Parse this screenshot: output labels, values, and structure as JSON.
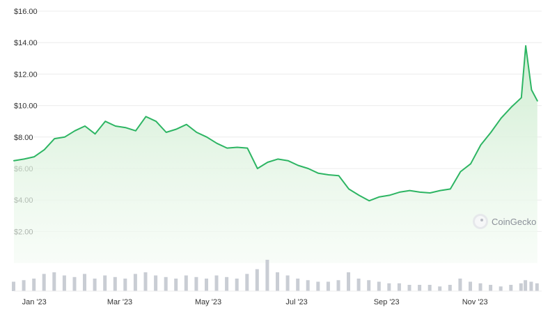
{
  "chart_data": {
    "type": "area",
    "title": "",
    "xlabel": "",
    "ylabel": "",
    "y_tick_labels": [
      "$2.00",
      "$4.00",
      "$6.00",
      "$8.00",
      "$10.00",
      "$12.00",
      "$14.00",
      "$16.00"
    ],
    "y_ticks": [
      2,
      4,
      6,
      8,
      10,
      12,
      14,
      16
    ],
    "ylim": [
      0,
      16
    ],
    "x_tick_labels": [
      "Jan '23",
      "Mar '23",
      "May '23",
      "Jul '23",
      "Sep '23",
      "Nov '23"
    ],
    "x_ticks": [
      "2023-01-15",
      "2023-03-15",
      "2023-05-15",
      "2023-07-15",
      "2023-09-15",
      "2023-11-15"
    ],
    "xlim": [
      "2023-01-01",
      "2023-12-31"
    ],
    "grid": true,
    "series": [
      {
        "values": [
          [
            "2023-01-01",
            6.5
          ],
          [
            "2023-01-08",
            6.6
          ],
          [
            "2023-01-15",
            6.75
          ],
          [
            "2023-01-22",
            7.2
          ],
          [
            "2023-01-29",
            7.9
          ],
          [
            "2023-02-05",
            8.0
          ],
          [
            "2023-02-12",
            8.4
          ],
          [
            "2023-02-19",
            8.7
          ],
          [
            "2023-02-26",
            8.2
          ],
          [
            "2023-03-05",
            9.0
          ],
          [
            "2023-03-12",
            8.7
          ],
          [
            "2023-03-19",
            8.6
          ],
          [
            "2023-03-26",
            8.4
          ],
          [
            "2023-04-02",
            9.3
          ],
          [
            "2023-04-09",
            9.0
          ],
          [
            "2023-04-16",
            8.3
          ],
          [
            "2023-04-23",
            8.5
          ],
          [
            "2023-04-30",
            8.8
          ],
          [
            "2023-05-07",
            8.3
          ],
          [
            "2023-05-14",
            8.0
          ],
          [
            "2023-05-21",
            7.6
          ],
          [
            "2023-05-28",
            7.3
          ],
          [
            "2023-06-04",
            7.35
          ],
          [
            "2023-06-11",
            7.3
          ],
          [
            "2023-06-18",
            6.0
          ],
          [
            "2023-06-25",
            6.4
          ],
          [
            "2023-07-02",
            6.6
          ],
          [
            "2023-07-09",
            6.5
          ],
          [
            "2023-07-16",
            6.2
          ],
          [
            "2023-07-23",
            6.0
          ],
          [
            "2023-07-30",
            5.7
          ],
          [
            "2023-08-06",
            5.6
          ],
          [
            "2023-08-13",
            5.55
          ],
          [
            "2023-08-20",
            4.7
          ],
          [
            "2023-08-27",
            4.3
          ],
          [
            "2023-09-03",
            3.95
          ],
          [
            "2023-09-10",
            4.2
          ],
          [
            "2023-09-17",
            4.3
          ],
          [
            "2023-09-24",
            4.5
          ],
          [
            "2023-10-01",
            4.6
          ],
          [
            "2023-10-08",
            4.5
          ],
          [
            "2023-10-15",
            4.45
          ],
          [
            "2023-10-22",
            4.6
          ],
          [
            "2023-10-29",
            4.7
          ],
          [
            "2023-11-05",
            5.8
          ],
          [
            "2023-11-12",
            6.3
          ],
          [
            "2023-11-19",
            7.5
          ],
          [
            "2023-11-26",
            8.3
          ],
          [
            "2023-12-03",
            9.2
          ],
          [
            "2023-12-10",
            9.9
          ],
          [
            "2023-12-17",
            10.5
          ],
          [
            "2023-12-20",
            13.8
          ],
          [
            "2023-12-24",
            11.0
          ],
          [
            "2023-12-28",
            10.3
          ]
        ]
      }
    ],
    "volume_series": [
      [
        "2023-01-01",
        0.3
      ],
      [
        "2023-01-08",
        0.35
      ],
      [
        "2023-01-15",
        0.4
      ],
      [
        "2023-01-22",
        0.55
      ],
      [
        "2023-01-29",
        0.6
      ],
      [
        "2023-02-05",
        0.5
      ],
      [
        "2023-02-12",
        0.45
      ],
      [
        "2023-02-19",
        0.55
      ],
      [
        "2023-02-26",
        0.4
      ],
      [
        "2023-03-05",
        0.5
      ],
      [
        "2023-03-12",
        0.45
      ],
      [
        "2023-03-19",
        0.4
      ],
      [
        "2023-03-26",
        0.55
      ],
      [
        "2023-04-02",
        0.6
      ],
      [
        "2023-04-09",
        0.5
      ],
      [
        "2023-04-16",
        0.45
      ],
      [
        "2023-04-23",
        0.4
      ],
      [
        "2023-04-30",
        0.5
      ],
      [
        "2023-05-07",
        0.45
      ],
      [
        "2023-05-14",
        0.4
      ],
      [
        "2023-05-21",
        0.5
      ],
      [
        "2023-05-28",
        0.45
      ],
      [
        "2023-06-04",
        0.4
      ],
      [
        "2023-06-11",
        0.55
      ],
      [
        "2023-06-18",
        0.7
      ],
      [
        "2023-06-25",
        1.0
      ],
      [
        "2023-07-02",
        0.6
      ],
      [
        "2023-07-09",
        0.5
      ],
      [
        "2023-07-16",
        0.4
      ],
      [
        "2023-07-23",
        0.35
      ],
      [
        "2023-07-30",
        0.3
      ],
      [
        "2023-08-06",
        0.3
      ],
      [
        "2023-08-13",
        0.35
      ],
      [
        "2023-08-20",
        0.6
      ],
      [
        "2023-08-27",
        0.4
      ],
      [
        "2023-09-03",
        0.35
      ],
      [
        "2023-09-10",
        0.3
      ],
      [
        "2023-09-17",
        0.25
      ],
      [
        "2023-09-24",
        0.25
      ],
      [
        "2023-10-01",
        0.2
      ],
      [
        "2023-10-08",
        0.2
      ],
      [
        "2023-10-15",
        0.2
      ],
      [
        "2023-10-22",
        0.15
      ],
      [
        "2023-10-29",
        0.2
      ],
      [
        "2023-11-05",
        0.4
      ],
      [
        "2023-11-12",
        0.3
      ],
      [
        "2023-11-19",
        0.25
      ],
      [
        "2023-11-26",
        0.2
      ],
      [
        "2023-12-03",
        0.15
      ],
      [
        "2023-12-10",
        0.2
      ],
      [
        "2023-12-17",
        0.25
      ],
      [
        "2023-12-20",
        0.35
      ],
      [
        "2023-12-24",
        0.3
      ],
      [
        "2023-12-28",
        0.25
      ]
    ],
    "colors": {
      "line": "#2db563",
      "fill_top": "#cdeccf",
      "fill_bottom": "#f3fbf3",
      "volume": "#c9cdd4",
      "grid": "#ececec"
    }
  },
  "watermark": {
    "label": "CoinGecko",
    "icon": "gecko-logo-icon"
  }
}
